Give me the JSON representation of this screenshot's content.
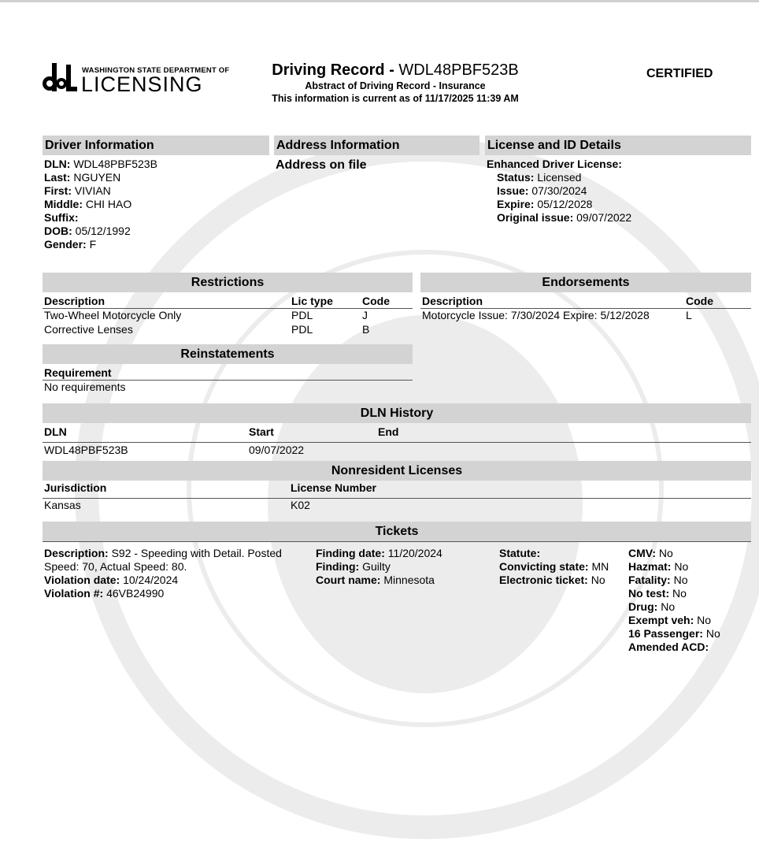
{
  "logo": {
    "top_text": "WASHINGTON STATE DEPARTMENT OF",
    "main_text": "LICENSING",
    "mark": "dol"
  },
  "header": {
    "title_bold": "Driving Record - ",
    "title_dln": "WDL48PBF523B",
    "subtitle": "Abstract of Driving Record - Insurance",
    "current_as_of": "This information is current as of 11/17/2025 11:39 AM",
    "certified": "CERTIFIED"
  },
  "driver": {
    "title": "Driver Information",
    "fields": [
      {
        "label": "DLN:",
        "value": "WDL48PBF523B"
      },
      {
        "label": "Last:",
        "value": "NGUYEN"
      },
      {
        "label": "First:",
        "value": "VIVIAN"
      },
      {
        "label": "Middle:",
        "value": "CHI HAO"
      },
      {
        "label": "Suffix:",
        "value": ""
      },
      {
        "label": "DOB:",
        "value": "05/12/1992"
      },
      {
        "label": "Gender:",
        "value": "F"
      }
    ]
  },
  "address": {
    "title": "Address Information",
    "text": "Address on file"
  },
  "license": {
    "title": "License and ID Details",
    "type": "Enhanced Driver License:",
    "fields": [
      {
        "label": "Status:",
        "value": "Licensed"
      },
      {
        "label": "Issue:",
        "value": "07/30/2024"
      },
      {
        "label": "Expire:",
        "value": "05/12/2028"
      },
      {
        "label": "Original issue:",
        "value": "09/07/2022"
      }
    ]
  },
  "restrictions": {
    "title": "Restrictions",
    "columns": [
      "Description",
      "Lic type",
      "Code"
    ],
    "rows": [
      [
        "Two-Wheel Motorcycle Only",
        "PDL",
        "J"
      ],
      [
        "Corrective Lenses",
        "PDL",
        "B"
      ]
    ]
  },
  "endorsements": {
    "title": "Endorsements",
    "columns": [
      "Description",
      "Code"
    ],
    "rows": [
      [
        "Motorcycle Issue: 7/30/2024 Expire: 5/12/2028",
        "L"
      ]
    ]
  },
  "reinstatements": {
    "title": "Reinstatements",
    "columns": [
      "Requirement"
    ],
    "rows": [
      [
        "No requirements"
      ]
    ]
  },
  "dln_history": {
    "title": "DLN History",
    "columns": [
      "DLN",
      "Start",
      "End"
    ],
    "rows": [
      [
        "WDL48PBF523B",
        "09/07/2022",
        ""
      ]
    ]
  },
  "nonresident": {
    "title": "Nonresident Licenses",
    "columns": [
      "Jurisdiction",
      "License Number"
    ],
    "rows": [
      [
        "Kansas",
        "K02"
      ]
    ]
  },
  "tickets": {
    "title": "Tickets",
    "items": [
      {
        "col1": [
          {
            "label": "Description:",
            "value": "S92 - Speeding with Detail. Posted Speed: 70, Actual Speed: 80."
          },
          {
            "label": "Violation date:",
            "value": "10/24/2024"
          },
          {
            "label": "Violation #:",
            "value": "46VB24990"
          }
        ],
        "col2": [
          {
            "label": "Finding date:",
            "value": "11/20/2024"
          },
          {
            "label": "Finding:",
            "value": "Guilty"
          },
          {
            "label": "Court name:",
            "value": "Minnesota"
          }
        ],
        "col3": [
          {
            "label": "Statute:",
            "value": ""
          },
          {
            "label": "Convicting state:",
            "value": "MN"
          },
          {
            "label": "Electronic ticket:",
            "value": "No"
          }
        ],
        "col4": [
          {
            "label": "CMV:",
            "value": "No"
          },
          {
            "label": "Hazmat:",
            "value": "No"
          },
          {
            "label": "Fatality:",
            "value": "No"
          },
          {
            "label": "No test:",
            "value": "No"
          },
          {
            "label": "Drug:",
            "value": "No"
          },
          {
            "label": "Exempt veh:",
            "value": "No"
          },
          {
            "label": "16 Passenger:",
            "value": "No"
          },
          {
            "label": "Amended ACD:",
            "value": ""
          }
        ]
      }
    ]
  }
}
